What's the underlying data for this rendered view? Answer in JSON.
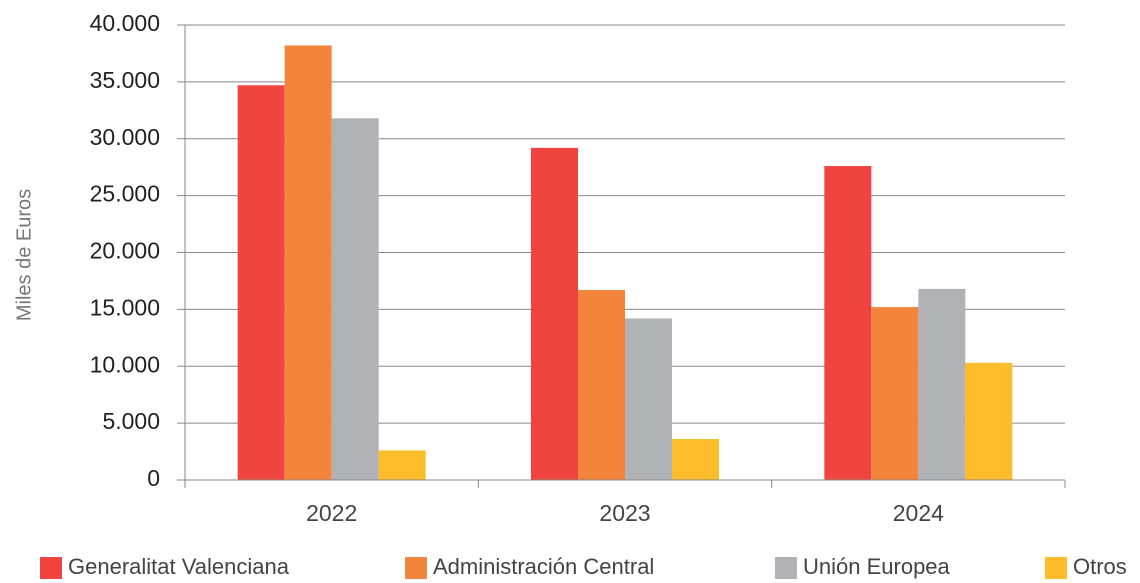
{
  "chart_data": {
    "type": "bar",
    "y_axis_label": "Miles de Euros",
    "categories": [
      "2022",
      "2023",
      "2024"
    ],
    "series": [
      {
        "name": "Generalitat Valenciana",
        "color": "#ef4440",
        "values": [
          34700,
          29200,
          27600
        ]
      },
      {
        "name": "Administración Central",
        "color": "#f3843c",
        "values": [
          38200,
          16700,
          15200
        ]
      },
      {
        "name": "Unión Europea",
        "color": "#b1b2b6",
        "values": [
          31800,
          14200,
          16800
        ]
      },
      {
        "name": "Otros",
        "color": "#fdbd2b",
        "values": [
          2600,
          3600,
          10300
        ]
      }
    ],
    "ylim": [
      0,
      40000
    ],
    "yticks": [
      0,
      {
        "value": 5000,
        "label": "5.000"
      },
      {
        "value": 10000,
        "label": "10.000"
      },
      {
        "value": 15000,
        "label": "15.000"
      },
      {
        "value": 20000,
        "label": "20.000"
      },
      {
        "value": 25000,
        "label": "25.000"
      },
      {
        "value": 30000,
        "label": "30.000"
      },
      {
        "value": 35000,
        "label": "35.000"
      },
      {
        "value": 40000,
        "label": "40.000"
      }
    ],
    "grid": true,
    "legend": "bottom"
  }
}
